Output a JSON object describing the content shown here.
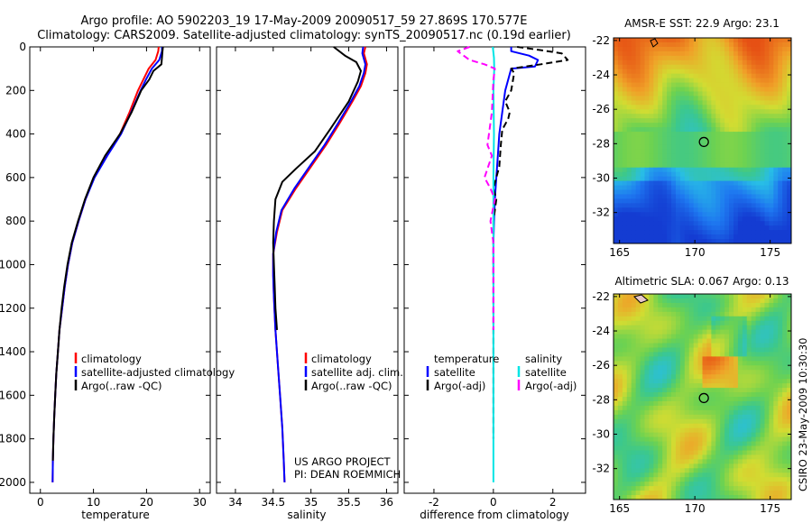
{
  "header": {
    "line1": "Argo profile: AO 5902203_19 17-May-2009 20090517_59 27.869S 170.577E",
    "line2": "Climatology: CARS2009. Satellite-adjusted climatology: synTS_20090517.nc (0.19d earlier)"
  },
  "credits": {
    "project": "US ARGO PROJECT",
    "pi": "PI: DEAN ROEMMICH",
    "timestamp": "CSIRO 23-May-2009 10:30:30"
  },
  "colors": {
    "climatology": "#ff0000",
    "satellite": "#0000ff",
    "argo": "#000000",
    "salinity_satellite": "#00e5e5",
    "salinity_argo": "#ff00ff",
    "coast": "#000000"
  },
  "chart_data": [
    {
      "id": "temperature",
      "type": "line",
      "xlabel": "temperature",
      "ylabel": "",
      "xlim": [
        -2,
        32
      ],
      "ylim": [
        2050,
        0
      ],
      "xticks": [
        "0",
        "10",
        "20",
        "30"
      ],
      "yticks": [
        "0",
        "200",
        "400",
        "600",
        "800",
        "1000",
        "1200",
        "1400",
        "1600",
        "1800",
        "2000"
      ],
      "legend": [
        "climatology",
        "satellite-adjusted climatology",
        "Argo(..raw -QC)"
      ],
      "series": [
        {
          "name": "climatology",
          "color": "#ff0000",
          "points": [
            [
              22.3,
              0
            ],
            [
              22.2,
              20
            ],
            [
              21.7,
              60
            ],
            [
              20.4,
              100
            ],
            [
              19.4,
              150
            ],
            [
              18.4,
              200
            ],
            [
              16.8,
              300
            ],
            [
              15.0,
              400
            ],
            [
              12.5,
              500
            ],
            [
              10.1,
              600
            ],
            [
              8.5,
              700
            ],
            [
              7.2,
              800
            ],
            [
              6.0,
              900
            ],
            [
              5.2,
              1000
            ],
            [
              4.6,
              1100
            ],
            [
              4.1,
              1200
            ],
            [
              3.6,
              1300
            ],
            [
              3.3,
              1400
            ],
            [
              3.0,
              1500
            ],
            [
              2.8,
              1600
            ],
            [
              2.6,
              1700
            ],
            [
              2.45,
              1800
            ],
            [
              2.35,
              1900
            ],
            [
              2.3,
              2000
            ]
          ]
        },
        {
          "name": "satellite-adjusted climatology",
          "color": "#0000ff",
          "points": [
            [
              22.9,
              0
            ],
            [
              22.9,
              20
            ],
            [
              22.4,
              60
            ],
            [
              21.0,
              100
            ],
            [
              19.9,
              150
            ],
            [
              18.9,
              200
            ],
            [
              17.1,
              300
            ],
            [
              15.2,
              400
            ],
            [
              12.6,
              500
            ],
            [
              10.2,
              600
            ],
            [
              8.5,
              700
            ],
            [
              7.2,
              800
            ],
            [
              6.0,
              900
            ],
            [
              5.2,
              1000
            ],
            [
              4.6,
              1100
            ],
            [
              4.1,
              1200
            ],
            [
              3.6,
              1300
            ],
            [
              3.3,
              1400
            ],
            [
              3.0,
              1500
            ],
            [
              2.8,
              1600
            ],
            [
              2.6,
              1700
            ],
            [
              2.45,
              1800
            ],
            [
              2.35,
              1900
            ],
            [
              2.3,
              2000
            ]
          ]
        },
        {
          "name": "Argo(..raw -QC)",
          "color": "#000000",
          "points": [
            [
              23.1,
              0
            ],
            [
              23.0,
              20
            ],
            [
              22.9,
              50
            ],
            [
              22.8,
              80
            ],
            [
              21.3,
              110
            ],
            [
              20.5,
              150
            ],
            [
              19.0,
              200
            ],
            [
              17.2,
              300
            ],
            [
              15.0,
              400
            ],
            [
              12.2,
              500
            ],
            [
              10.0,
              600
            ],
            [
              8.4,
              700
            ],
            [
              7.1,
              800
            ],
            [
              5.9,
              900
            ],
            [
              5.1,
              1000
            ],
            [
              4.5,
              1100
            ],
            [
              4.0,
              1200
            ],
            [
              3.6,
              1300
            ],
            [
              3.3,
              1400
            ],
            [
              3.0,
              1500
            ],
            [
              2.8,
              1600
            ],
            [
              2.6,
              1700
            ],
            [
              2.45,
              1800
            ],
            [
              2.35,
              1900
            ]
          ]
        }
      ]
    },
    {
      "id": "salinity",
      "type": "line",
      "xlabel": "salinity",
      "ylabel": "",
      "xlim": [
        33.75,
        36.15
      ],
      "ylim": [
        2050,
        0
      ],
      "xticks": [
        "34",
        "34.5",
        "35",
        "35.5",
        "36"
      ],
      "legend": [
        "climatology",
        "satellite adj. clim.",
        "Argo(..raw -QC)"
      ],
      "series": [
        {
          "name": "climatology",
          "color": "#ff0000",
          "points": [
            [
              35.72,
              0
            ],
            [
              35.7,
              30
            ],
            [
              35.74,
              80
            ],
            [
              35.72,
              120
            ],
            [
              35.66,
              180
            ],
            [
              35.55,
              250
            ],
            [
              35.38,
              350
            ],
            [
              35.2,
              450
            ],
            [
              35.0,
              550
            ],
            [
              34.8,
              650
            ],
            [
              34.62,
              750
            ],
            [
              34.55,
              850
            ],
            [
              34.5,
              950
            ],
            [
              34.5,
              1050
            ],
            [
              34.51,
              1150
            ],
            [
              34.53,
              1300
            ],
            [
              34.56,
              1450
            ],
            [
              34.59,
              1600
            ],
            [
              34.62,
              1750
            ],
            [
              34.64,
              1900
            ],
            [
              34.65,
              2000
            ]
          ]
        },
        {
          "name": "satellite adj. clim.",
          "color": "#0000ff",
          "points": [
            [
              35.69,
              0
            ],
            [
              35.68,
              30
            ],
            [
              35.72,
              80
            ],
            [
              35.7,
              120
            ],
            [
              35.64,
              180
            ],
            [
              35.53,
              250
            ],
            [
              35.36,
              350
            ],
            [
              35.18,
              450
            ],
            [
              34.98,
              550
            ],
            [
              34.78,
              650
            ],
            [
              34.61,
              750
            ],
            [
              34.54,
              850
            ],
            [
              34.5,
              950
            ],
            [
              34.5,
              1050
            ],
            [
              34.51,
              1150
            ],
            [
              34.53,
              1300
            ],
            [
              34.56,
              1450
            ],
            [
              34.59,
              1600
            ],
            [
              34.62,
              1750
            ],
            [
              34.64,
              1900
            ],
            [
              34.65,
              2000
            ]
          ]
        },
        {
          "name": "Argo(..raw -QC)",
          "color": "#000000",
          "points": [
            [
              35.3,
              0
            ],
            [
              35.45,
              40
            ],
            [
              35.6,
              70
            ],
            [
              35.66,
              110
            ],
            [
              35.62,
              160
            ],
            [
              35.5,
              250
            ],
            [
              35.25,
              380
            ],
            [
              35.05,
              480
            ],
            [
              34.8,
              560
            ],
            [
              34.62,
              620
            ],
            [
              34.53,
              700
            ],
            [
              34.51,
              800
            ],
            [
              34.5,
              900
            ],
            [
              34.51,
              1000
            ],
            [
              34.52,
              1100
            ],
            [
              34.53,
              1200
            ],
            [
              34.55,
              1300
            ]
          ]
        }
      ]
    },
    {
      "id": "difference",
      "type": "line",
      "xlabel": "difference from climatology",
      "ylabel": "",
      "xlim": [
        -3.0,
        3.1
      ],
      "ylim": [
        2050,
        0
      ],
      "xticks": [
        "-2",
        "0",
        "2"
      ],
      "legend_titles": [
        "temperature",
        "salinity"
      ],
      "legend": [
        "satellite",
        "Argo(-adj)",
        "satellite",
        "Argo(-adj)"
      ],
      "series": [
        {
          "name": "temperature satellite",
          "color": "#0000ff",
          "points": [
            [
              0.6,
              0
            ],
            [
              0.6,
              20
            ],
            [
              1.2,
              40
            ],
            [
              1.5,
              60
            ],
            [
              1.4,
              90
            ],
            [
              0.6,
              100
            ],
            [
              0.4,
              200
            ],
            [
              0.3,
              300
            ],
            [
              0.2,
              400
            ],
            [
              0.15,
              500
            ],
            [
              0.1,
              600
            ],
            [
              0.05,
              700
            ],
            [
              0.02,
              800
            ],
            [
              0,
              900
            ],
            [
              0,
              1050
            ]
          ]
        },
        {
          "name": "temperature Argo(-adj)",
          "color": "#000000",
          "dashed": true,
          "points": [
            [
              0.8,
              0
            ],
            [
              1.6,
              15
            ],
            [
              2.3,
              30
            ],
            [
              2.5,
              60
            ],
            [
              1.6,
              80
            ],
            [
              0.6,
              100
            ],
            [
              0.7,
              120
            ],
            [
              0.6,
              200
            ],
            [
              0.4,
              250
            ],
            [
              0.55,
              300
            ],
            [
              0.5,
              330
            ],
            [
              0.3,
              380
            ],
            [
              0.25,
              450
            ],
            [
              0.2,
              550
            ],
            [
              0.1,
              600
            ],
            [
              0.0,
              650
            ],
            [
              0.1,
              700
            ],
            [
              0.0,
              800
            ],
            [
              0.0,
              900
            ],
            [
              0.0,
              1000
            ],
            [
              0.0,
              1100
            ],
            [
              0.0,
              1200
            ],
            [
              0.0,
              1500
            ],
            [
              0.0,
              1800
            ]
          ]
        },
        {
          "name": "salinity satellite",
          "color": "#00e5e5",
          "points": [
            [
              -0.02,
              0
            ],
            [
              0.02,
              50
            ],
            [
              0.03,
              100
            ],
            [
              0.0,
              200
            ],
            [
              0.02,
              400
            ],
            [
              0.0,
              600
            ],
            [
              0.0,
              800
            ],
            [
              0.0,
              1000
            ],
            [
              0.0,
              1200
            ],
            [
              0.0,
              1500
            ],
            [
              0.0,
              1800
            ],
            [
              0.0,
              2000
            ]
          ]
        },
        {
          "name": "salinity Argo(-adj)",
          "color": "#ff00ff",
          "dashed": true,
          "points": [
            [
              -0.8,
              0
            ],
            [
              -1.2,
              20
            ],
            [
              -1.0,
              40
            ],
            [
              -0.8,
              60
            ],
            [
              -0.3,
              80
            ],
            [
              0.05,
              100
            ],
            [
              0.0,
              150
            ],
            [
              -0.05,
              300
            ],
            [
              -0.2,
              450
            ],
            [
              -0.05,
              500
            ],
            [
              -0.3,
              600
            ],
            [
              -0.1,
              650
            ],
            [
              0.05,
              700
            ],
            [
              -0.1,
              800
            ],
            [
              0.0,
              900
            ],
            [
              0.0,
              1000
            ],
            [
              0.0,
              1100
            ],
            [
              0.0,
              1300
            ]
          ]
        }
      ]
    }
  ],
  "maps": [
    {
      "id": "sst-map",
      "title": "AMSR-E SST: 22.9 Argo: 23.1",
      "xticks": [
        "165",
        "170",
        "175"
      ],
      "yticks": [
        "-22",
        "-24",
        "-26",
        "-28",
        "-30",
        "-32"
      ],
      "marker": {
        "lon": 170.6,
        "lat": -27.9
      }
    },
    {
      "id": "sla-map",
      "title": "Altimetric SLA: 0.067 Argo: 0.13",
      "xticks": [
        "165",
        "170",
        "175"
      ],
      "yticks": [
        "-22",
        "-24",
        "-26",
        "-28",
        "-30",
        "-32"
      ],
      "marker": {
        "lon": 170.6,
        "lat": -27.9
      }
    }
  ]
}
